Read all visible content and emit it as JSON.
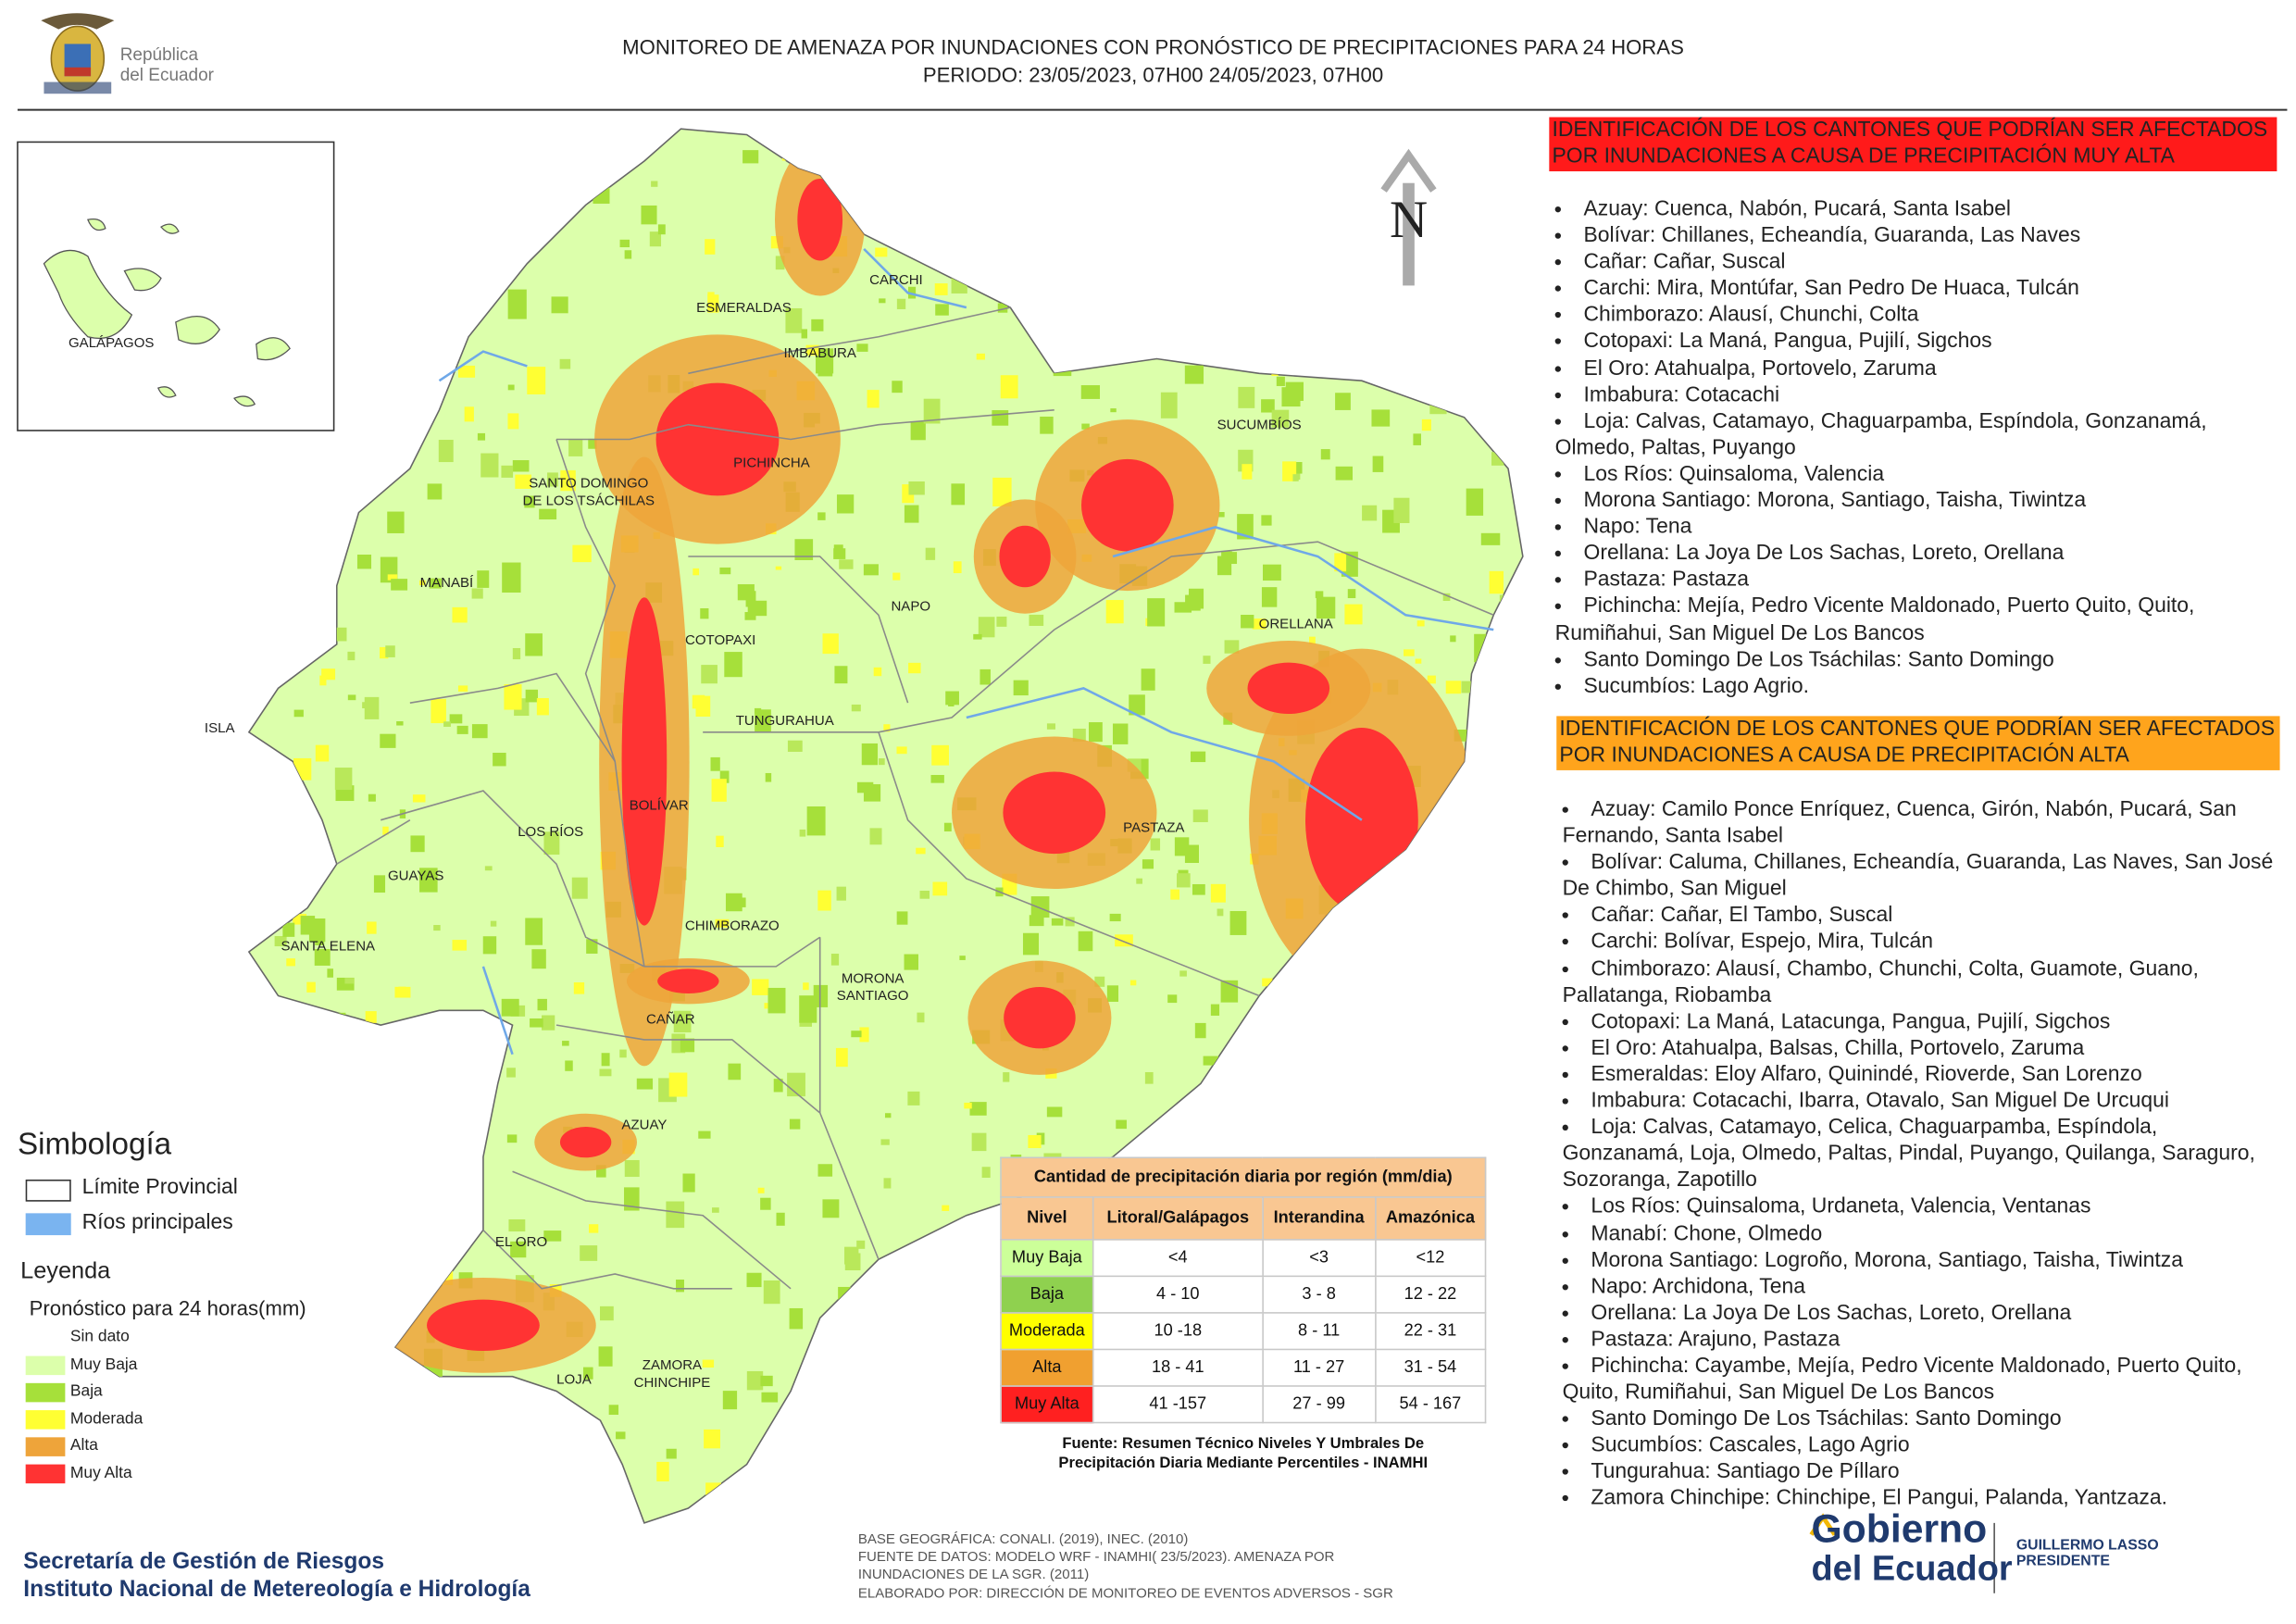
{
  "header": {
    "title": "MONITOREO DE AMENAZA POR INUNDACIONES  CON PRONÓSTICO DE  PRECIPITACIONES PARA 24 HORAS",
    "period": "PERIODO: 23/05/2023, 07H00 24/05/2023, 07H00",
    "logo_line1": "República",
    "logo_line2": "del Ecuador"
  },
  "map": {
    "north": "N",
    "inset_label": "GALÁPAGOS",
    "labels": [
      "CARCHI",
      "ESMERALDAS",
      "IMBABURA",
      "SUCUMBÍOS",
      "PICHINCHA",
      "SANTO DOMINGO DE LOS TSÁCHILAS",
      "MANABÍ",
      "NAPO",
      "ORELLANA",
      "COTOPAXI",
      "TUNGURAHUA",
      "ISLA",
      "BOLÍVAR",
      "PASTAZA",
      "LOS RÍOS",
      "GUAYAS",
      "CHIMBORAZO",
      "SANTA ELENA",
      "MORONA SANTIAGO",
      "CAÑAR",
      "AZUAY",
      "EL ORO",
      "LOJA",
      "ZAMORA CHINCHIPE"
    ]
  },
  "symbology": {
    "title": "Simbología",
    "provincial_limit": "Límite Provincial",
    "rivers": "Ríos principales"
  },
  "legend": {
    "title": "Leyenda",
    "subtitle": "Pronóstico para 24 horas(mm)",
    "items": [
      {
        "label": "Sin dato",
        "color": "#ffffff"
      },
      {
        "label": "Muy Baja",
        "color": "#dcffab"
      },
      {
        "label": "Baja",
        "color": "#a6e03a"
      },
      {
        "label": "Moderada",
        "color": "#ffff33"
      },
      {
        "label": "Alta",
        "color": "#eea43a"
      },
      {
        "label": "Muy Alta",
        "color": "#ff3333"
      }
    ]
  },
  "table": {
    "title": "Cantidad de precipitación diaria por región (mm/dia)",
    "headers": [
      "Nivel",
      "Litoral/Galápagos",
      "Interandina",
      "Amazónica"
    ],
    "rows": [
      {
        "level": "Muy Baja",
        "color": "#ccff99",
        "values": [
          "<4",
          "<3",
          "<12"
        ]
      },
      {
        "level": "Baja",
        "color": "#8fd14f",
        "values": [
          "4 - 10",
          "3 - 8",
          "12 - 22"
        ]
      },
      {
        "level": "Moderada",
        "color": "#ffff00",
        "values": [
          "10 -18",
          "8 - 11",
          "22 - 31"
        ]
      },
      {
        "level": "Alta",
        "color": "#f0a030",
        "values": [
          "18 - 41",
          "11 - 27",
          "31 - 54"
        ]
      },
      {
        "level": "Muy Alta",
        "color": "#ff2020",
        "values": [
          "41 -157",
          "27 - 99",
          "54 - 167"
        ]
      }
    ],
    "source": [
      "Fuente: Resumen Técnico Niveles Y Umbrales De",
      "Precipitación Diaria Mediante Percentiles - INAMHI"
    ]
  },
  "very_high": {
    "heading": "IDENTIFICACIÓN DE LOS CANTONES QUE PODRÍAN SER AFECTADOS POR INUNDACIONES  A CAUSA DE PRECIPITACIÓN MUY ALTA",
    "items": [
      "Azuay: Cuenca, Nabón, Pucará, Santa Isabel",
      "Bolívar: Chillanes, Echeandía, Guaranda, Las Naves",
      "Cañar: Cañar, Suscal",
      "Carchi: Mira, Montúfar, San Pedro De Huaca, Tulcán",
      "Chimborazo: Alausí, Chunchi, Colta",
      "Cotopaxi: La Maná, Pangua, Pujilí, Sigchos",
      "El Oro: Atahualpa, Portovelo, Zaruma",
      "Imbabura: Cotacachi",
      "Loja: Calvas, Catamayo, Chaguarpamba, Espíndola, Gonzanamá, Olmedo, Paltas, Puyango",
      "Los Ríos: Quinsaloma, Valencia",
      "Morona Santiago: Morona, Santiago, Taisha, Tiwintza",
      "Napo: Tena",
      "Orellana: La Joya De Los Sachas, Loreto, Orellana",
      "Pastaza: Pastaza",
      "Pichincha: Mejía, Pedro Vicente Maldonado, Puerto Quito, Quito, Rumiñahui, San Miguel De Los Bancos",
      "Santo Domingo De Los Tsáchilas: Santo Domingo",
      "Sucumbíos: Lago Agrio."
    ]
  },
  "high": {
    "heading": "IDENTIFICACIÓN DE LOS CANTONES QUE  PODRÍAN SER AFECTADOS POR INUNDACIONES  A CAUSA DE PRECIPITACIÓN ALTA",
    "items": [
      "Azuay: Camilo Ponce Enríquez, Cuenca, Girón, Nabón, Pucará, San Fernando, Santa Isabel",
      "Bolívar: Caluma, Chillanes, Echeandía, Guaranda, Las Naves, San José De Chimbo, San Miguel",
      "Cañar: Cañar, El Tambo, Suscal",
      "Carchi: Bolívar, Espejo, Mira, Tulcán",
      "Chimborazo: Alausí, Chambo, Chunchi, Colta, Guamote, Guano, Pallatanga, Riobamba",
      "Cotopaxi: La Maná, Latacunga, Pangua, Pujilí, Sigchos",
      "El Oro: Atahualpa, Balsas, Chilla, Portovelo, Zaruma",
      "Esmeraldas: Eloy Alfaro, Quinindé, Rioverde, San Lorenzo",
      "Imbabura: Cotacachi, Ibarra, Otavalo, San Miguel De Urcuqui",
      "Loja: Calvas, Catamayo, Celica, Chaguarpamba, Espíndola, Gonzanamá, Loja, Olmedo, Paltas, Pindal, Puyango, Quilanga, Saraguro, Sozoranga, Zapotillo",
      "Los Ríos: Quinsaloma, Urdaneta, Valencia, Ventanas",
      "Manabí: Chone, Olmedo",
      "Morona Santiago: Logroño, Morona, Santiago, Taisha, Tiwintza",
      "Napo: Archidona, Tena",
      "Orellana: La Joya De Los Sachas, Loreto, Orellana",
      "Pastaza: Arajuno, Pastaza",
      "Pichincha: Cayambe, Mejía, Pedro Vicente Maldonado, Puerto Quito, Quito, Rumiñahui, San Miguel De Los Bancos",
      "Santo Domingo De Los Tsáchilas: Santo Domingo",
      "Sucumbíos: Cascales, Lago Agrio",
      "Tungurahua: Santiago De Píllaro",
      "Zamora Chinchipe: Chinchipe, El Pangui, Palanda, Yantzaza."
    ]
  },
  "footer": {
    "org1": "Secretaría de Gestión de Riesgos",
    "org2": "Instituto Nacional de Metereología e Hidrología",
    "notes": [
      "BASE GEOGRÁFICA: CONALI. (2019), INEC. (2010)",
      "FUENTE DE DATOS: MODELO WRF - INAMHI( 23/5/2023).  AMENAZA POR",
      "INUNDACIONES DE LA SGR. (2011)",
      "ELABORADO POR: DIRECCIÓN DE MONITOREO DE EVENTOS ADVERSOS - SGR"
    ],
    "gov1": "Gobierno",
    "gov2": "del Ecuador",
    "president_name": "GUILLERMO LASSO",
    "president_title": "PRESIDENTE"
  }
}
